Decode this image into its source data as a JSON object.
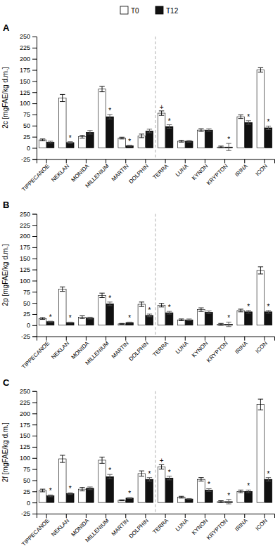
{
  "chart_data": [
    {
      "type": "bar",
      "title": "A",
      "y_label": "2c [mgFAE/kg d.m.]",
      "legend": "top",
      "categories": [
        "TIPPECANOE",
        "NEKLAN",
        "MONIDA",
        "MILLENIUM",
        "MARTIN",
        "DOLPHIN",
        "TERRA",
        "LUNA",
        "KYNON",
        "KRYPTON",
        "IRINA",
        "ICON"
      ],
      "series": [
        {
          "name": "T0",
          "color": "#ffffff",
          "values": [
            18,
            112,
            25,
            132,
            22,
            27,
            78,
            15,
            40,
            2,
            70,
            175
          ],
          "errors": [
            2,
            8,
            3,
            6,
            2,
            4,
            5,
            2,
            3,
            2,
            4,
            5
          ],
          "annotations": [
            null,
            null,
            null,
            null,
            null,
            null,
            "+",
            null,
            null,
            null,
            null,
            null
          ]
        },
        {
          "name": "T12",
          "color": "#111111",
          "values": [
            13,
            12,
            35,
            70,
            5,
            38,
            48,
            15,
            40,
            2,
            57,
            45
          ],
          "errors": [
            2,
            2,
            4,
            5,
            1,
            4,
            4,
            2,
            3,
            8,
            4,
            4
          ],
          "annotations": [
            null,
            "*",
            null,
            "*",
            "*",
            null,
            "*",
            null,
            null,
            "*",
            "*",
            "*"
          ]
        }
      ],
      "ylim": [
        -25,
        250
      ],
      "yticks": [
        -25,
        0,
        25,
        50,
        75,
        100,
        125,
        150,
        175,
        200,
        225,
        250
      ]
    },
    {
      "type": "bar",
      "title": "B",
      "y_label": "2p [mgFAE/kg d.m.]",
      "categories": [
        "TIPPECANOE",
        "NEKLAN",
        "MONIDA",
        "MILLENIUM",
        "MARTIN",
        "DOLPHIN",
        "TERRA",
        "LUNA",
        "KYNON",
        "KRYPTON",
        "IRINA",
        "ICON"
      ],
      "series": [
        {
          "name": "T0",
          "color": "#ffffff",
          "values": [
            15,
            81,
            18,
            67,
            3,
            47,
            45,
            12,
            35,
            2,
            33,
            123
          ],
          "errors": [
            2,
            5,
            3,
            5,
            1,
            5,
            4,
            2,
            4,
            2,
            3,
            8
          ],
          "annotations": [
            null,
            null,
            null,
            null,
            null,
            null,
            null,
            null,
            null,
            null,
            null,
            null
          ]
        },
        {
          "name": "T12",
          "color": "#111111",
          "values": [
            8,
            6,
            16,
            48,
            6,
            22,
            28,
            12,
            29,
            2,
            30,
            30
          ],
          "errors": [
            1,
            1,
            2,
            4,
            1,
            3,
            3,
            2,
            3,
            5,
            3,
            3
          ],
          "annotations": [
            "*",
            "*",
            null,
            "*",
            "*",
            "*",
            "*",
            null,
            null,
            "*",
            "*",
            "*"
          ]
        }
      ],
      "ylim": [
        -25,
        250
      ],
      "yticks": [
        -25,
        0,
        25,
        50,
        75,
        100,
        125,
        150,
        175,
        200,
        225,
        250
      ]
    },
    {
      "type": "bar",
      "title": "C",
      "y_label": "2f [mgFAE/kg d.m.]",
      "categories": [
        "TIPPECANOE",
        "NEKLAN",
        "MONIDA",
        "MILLENIUM",
        "MARTIN",
        "DOLPHIN",
        "TERRA",
        "LUNA",
        "KYNON",
        "KRYPTON",
        "IRINA",
        "ICON"
      ],
      "series": [
        {
          "name": "T0",
          "color": "#ffffff",
          "values": [
            27,
            98,
            30,
            95,
            5,
            65,
            80,
            12,
            52,
            2,
            25,
            220
          ],
          "errors": [
            3,
            8,
            4,
            7,
            1,
            6,
            5,
            2,
            4,
            2,
            3,
            12
          ],
          "annotations": [
            null,
            null,
            null,
            null,
            null,
            null,
            "+",
            null,
            null,
            null,
            null,
            null
          ]
        },
        {
          "name": "T12",
          "color": "#111111",
          "values": [
            15,
            20,
            32,
            58,
            10,
            52,
            55,
            8,
            28,
            2,
            25,
            52
          ],
          "errors": [
            2,
            2,
            3,
            5,
            1,
            4,
            4,
            1,
            3,
            5,
            3,
            4
          ],
          "annotations": [
            "*",
            "*",
            null,
            "*",
            "*",
            "*",
            "*",
            null,
            "*",
            "*",
            "*",
            "*"
          ]
        }
      ],
      "ylim": [
        -25,
        250
      ],
      "yticks": [
        -25,
        0,
        25,
        50,
        75,
        100,
        125,
        150,
        175,
        200,
        225,
        250
      ]
    }
  ]
}
